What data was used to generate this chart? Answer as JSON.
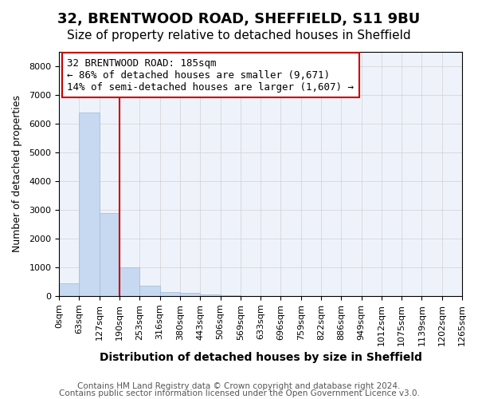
{
  "title1": "32, BRENTWOOD ROAD, SHEFFIELD, S11 9BU",
  "title2": "Size of property relative to detached houses in Sheffield",
  "xlabel": "Distribution of detached houses by size in Sheffield",
  "ylabel": "Number of detached properties",
  "bin_labels": [
    "0sqm",
    "63sqm",
    "127sqm",
    "190sqm",
    "253sqm",
    "316sqm",
    "380sqm",
    "443sqm",
    "506sqm",
    "569sqm",
    "633sqm",
    "696sqm",
    "759sqm",
    "822sqm",
    "886sqm",
    "949sqm",
    "1012sqm",
    "1075sqm",
    "1139sqm",
    "1202sqm",
    "1265sqm"
  ],
  "bar_heights": [
    450,
    6400,
    2900,
    1000,
    350,
    150,
    100,
    60,
    30,
    5,
    3,
    2,
    1,
    1,
    0,
    0,
    0,
    0,
    0,
    0
  ],
  "bar_color": "#c6d9f1",
  "bar_edge_color": "#a0b8d8",
  "red_line_x": 3,
  "red_line_color": "#cc0000",
  "annotation_text": "32 BRENTWOOD ROAD: 185sqm\n← 86% of detached houses are smaller (9,671)\n14% of semi-detached houses are larger (1,607) →",
  "annotation_box_color": "#ffffff",
  "annotation_box_edge": "#cc0000",
  "ylim": [
    0,
    8500
  ],
  "yticks": [
    0,
    1000,
    2000,
    3000,
    4000,
    5000,
    6000,
    7000,
    8000
  ],
  "grid_color": "#d0d0d0",
  "background_color": "#eef3fb",
  "footnote1": "Contains HM Land Registry data © Crown copyright and database right 2024.",
  "footnote2": "Contains public sector information licensed under the Open Government Licence v3.0.",
  "title1_fontsize": 13,
  "title2_fontsize": 11,
  "xlabel_fontsize": 10,
  "ylabel_fontsize": 9,
  "tick_fontsize": 8,
  "annot_fontsize": 9,
  "footnote_fontsize": 7.5
}
